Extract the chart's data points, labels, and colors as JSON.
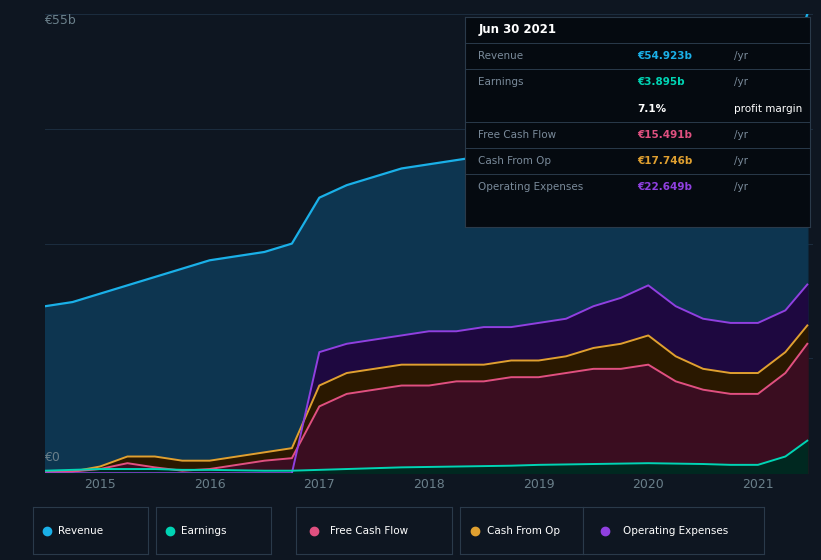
{
  "bg_color": "#0e1621",
  "plot_bg_color": "#0e1621",
  "grid_color": "#1c2d3f",
  "ylim": [
    0,
    55
  ],
  "ylabel_text": "€55b",
  "ylabel0_text": "€0",
  "years": [
    2014.5,
    2014.75,
    2015.0,
    2015.25,
    2015.5,
    2015.75,
    2016.0,
    2016.25,
    2016.5,
    2016.75,
    2017.0,
    2017.25,
    2017.5,
    2017.75,
    2018.0,
    2018.25,
    2018.5,
    2018.75,
    2019.0,
    2019.25,
    2019.5,
    2019.75,
    2020.0,
    2020.25,
    2020.5,
    2020.75,
    2021.0,
    2021.25,
    2021.45
  ],
  "revenue": [
    20.0,
    20.5,
    21.5,
    22.5,
    23.5,
    24.5,
    25.5,
    26.0,
    26.5,
    27.5,
    33.0,
    34.5,
    35.5,
    36.5,
    37.0,
    37.5,
    38.0,
    38.5,
    39.5,
    41.0,
    43.0,
    46.0,
    49.0,
    46.0,
    43.0,
    40.0,
    40.5,
    47.0,
    55.0
  ],
  "earnings": [
    0.3,
    0.4,
    0.5,
    0.5,
    0.5,
    0.4,
    0.4,
    0.35,
    0.3,
    0.3,
    0.4,
    0.5,
    0.6,
    0.7,
    0.75,
    0.8,
    0.85,
    0.9,
    1.0,
    1.05,
    1.1,
    1.15,
    1.2,
    1.15,
    1.1,
    1.0,
    1.0,
    2.0,
    3.9
  ],
  "free_cash": [
    0.1,
    0.2,
    0.5,
    1.2,
    0.7,
    0.3,
    0.5,
    1.0,
    1.5,
    1.8,
    8.0,
    9.5,
    10.0,
    10.5,
    10.5,
    11.0,
    11.0,
    11.5,
    11.5,
    12.0,
    12.5,
    12.5,
    13.0,
    11.0,
    10.0,
    9.5,
    9.5,
    12.0,
    15.5
  ],
  "cash_from_op": [
    0.1,
    0.2,
    0.8,
    2.0,
    2.0,
    1.5,
    1.5,
    2.0,
    2.5,
    3.0,
    10.5,
    12.0,
    12.5,
    13.0,
    13.0,
    13.0,
    13.0,
    13.5,
    13.5,
    14.0,
    15.0,
    15.5,
    16.5,
    14.0,
    12.5,
    12.0,
    12.0,
    14.5,
    17.7
  ],
  "op_expenses": [
    0.0,
    0.0,
    0.0,
    0.0,
    0.0,
    0.0,
    0.0,
    0.0,
    0.0,
    0.0,
    14.5,
    15.5,
    16.0,
    16.5,
    17.0,
    17.0,
    17.5,
    17.5,
    18.0,
    18.5,
    20.0,
    21.0,
    22.5,
    20.0,
    18.5,
    18.0,
    18.0,
    19.5,
    22.6
  ],
  "revenue_line_color": "#1ab0e8",
  "revenue_fill_color": "#0d3550",
  "earnings_line_color": "#00d4b4",
  "earnings_fill_color": "#002820",
  "free_cash_line_color": "#e05080",
  "free_cash_fill_color": "#3a0d20",
  "cash_from_op_line_color": "#e0a030",
  "cash_from_op_fill_color": "#2a1800",
  "op_expenses_line_color": "#9040e0",
  "op_expenses_fill_color": "#1e0840",
  "xtick_labels": [
    "2015",
    "2016",
    "2017",
    "2018",
    "2019",
    "2020",
    "2021"
  ],
  "xtick_positions": [
    2015,
    2016,
    2017,
    2018,
    2019,
    2020,
    2021
  ],
  "tick_color": "#6a7f8a",
  "info_box_bg": "#050a10",
  "info_box_border": "#2a3a4a",
  "info_date": "Jun 30 2021",
  "info_rows": [
    {
      "label": "Revenue",
      "value": "€54.923b",
      "unit": " /yr",
      "val_color": "#1ab0e8",
      "label_color": "#7a8a9a"
    },
    {
      "label": "Earnings",
      "value": "€3.895b",
      "unit": " /yr",
      "val_color": "#00d4b4",
      "label_color": "#7a8a9a"
    },
    {
      "label": "",
      "value": "7.1%",
      "unit": " profit margin",
      "val_color": "white",
      "label_color": "#7a8a9a",
      "unit_color": "white"
    },
    {
      "label": "Free Cash Flow",
      "value": "€15.491b",
      "unit": " /yr",
      "val_color": "#e05080",
      "label_color": "#7a8a9a"
    },
    {
      "label": "Cash From Op",
      "value": "€17.746b",
      "unit": " /yr",
      "val_color": "#e0a030",
      "label_color": "#7a8a9a"
    },
    {
      "label": "Operating Expenses",
      "value": "€22.649b",
      "unit": " /yr",
      "val_color": "#9040e0",
      "label_color": "#7a8a9a"
    }
  ],
  "legend_items": [
    {
      "label": "Revenue",
      "color": "#1ab0e8"
    },
    {
      "label": "Earnings",
      "color": "#00d4b4"
    },
    {
      "label": "Free Cash Flow",
      "color": "#e05080"
    },
    {
      "label": "Cash From Op",
      "color": "#e0a030"
    },
    {
      "label": "Operating Expenses",
      "color": "#9040e0"
    }
  ]
}
